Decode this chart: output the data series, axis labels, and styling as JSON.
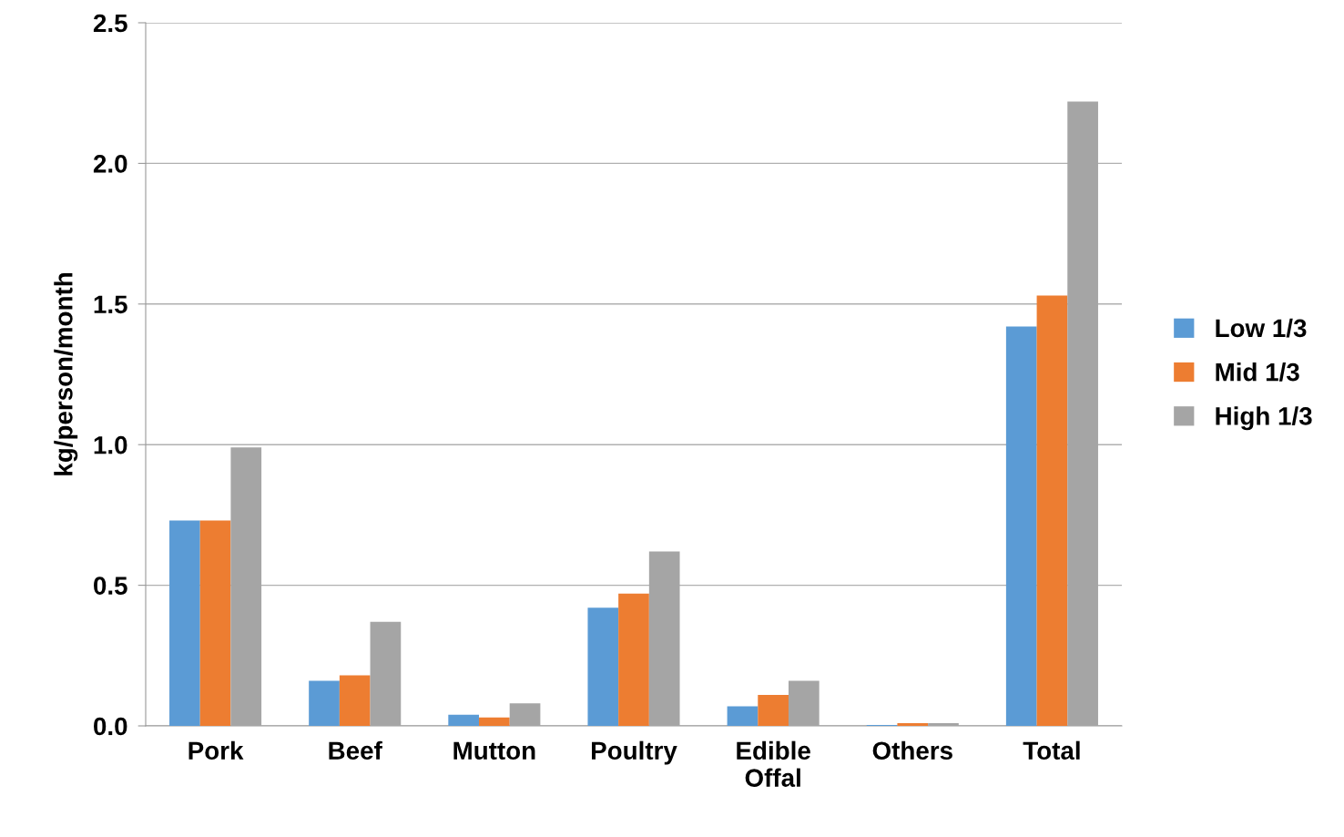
{
  "chart_data": {
    "type": "bar",
    "ylabel": "kg/person/month",
    "categories": [
      "Pork",
      "Beef",
      "Mutton",
      "Poultry",
      "Edible\nOffal",
      "Others",
      "Total"
    ],
    "series": [
      {
        "name": "Low 1/3",
        "color": "#5b9bd5",
        "values": [
          0.73,
          0.16,
          0.04,
          0.42,
          0.07,
          0.003,
          1.42
        ]
      },
      {
        "name": "Mid 1/3",
        "color": "#ed7d31",
        "values": [
          0.73,
          0.18,
          0.03,
          0.47,
          0.11,
          0.01,
          1.53
        ]
      },
      {
        "name": "High 1/3",
        "color": "#a5a5a5",
        "values": [
          0.99,
          0.37,
          0.08,
          0.62,
          0.16,
          0.01,
          2.22
        ]
      }
    ],
    "ylim": [
      0,
      2.5
    ],
    "yticks": [
      {
        "value": 0,
        "label": "0.0"
      },
      {
        "value": 0.5,
        "label": "0.5"
      },
      {
        "value": 1,
        "label": "1.0"
      },
      {
        "value": 1.5,
        "label": "1.5"
      },
      {
        "value": 2,
        "label": "2.0"
      },
      {
        "value": 2.5,
        "label": "2.5"
      }
    ],
    "grid": "y",
    "legend": "right"
  }
}
